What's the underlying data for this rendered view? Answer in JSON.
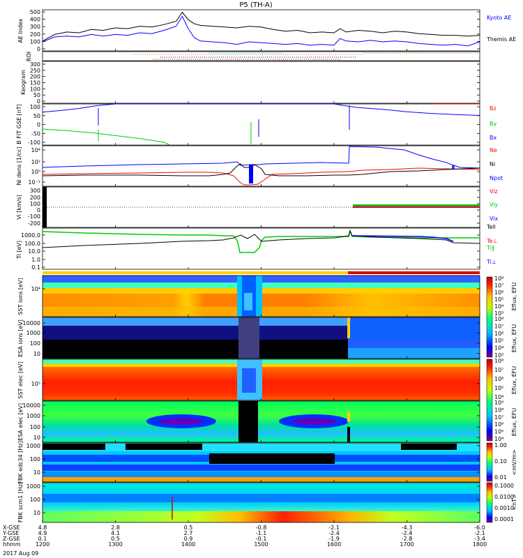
{
  "chart_data": {
    "type": "line",
    "title": "P5 (TH-A)",
    "date_label": "2017 Aug 09",
    "x_axis": {
      "rows": [
        {
          "label": "X-GSE",
          "values": [
            "4.8",
            "2.8",
            "0.5",
            "-0.8",
            "-2.1",
            "-4.3",
            "-6.0"
          ]
        },
        {
          "label": "Y-GSE",
          "values": [
            "4.9",
            "4.1",
            "2.7",
            "-1.1",
            "-2.4",
            "-2.4",
            "-2.1"
          ]
        },
        {
          "label": "Z-GSE",
          "values": [
            "0.1",
            "0.5",
            "0.9",
            "-0.1",
            "-1.9",
            "-2.8",
            "-3.4"
          ]
        },
        {
          "label": "hhmm",
          "values": [
            "1200",
            "1300",
            "1400",
            "1500",
            "1600",
            "1700",
            "1800"
          ]
        }
      ]
    },
    "panels": [
      {
        "id": "ae",
        "ylabel": "AE Index",
        "yticks": [
          "500",
          "400",
          "300",
          "200",
          "100",
          "0"
        ],
        "ylim": [
          0,
          500
        ],
        "legend": [
          {
            "name": "Kyoto AE",
            "color": "#0000ff"
          },
          {
            "name": "Themis AE",
            "color": "#000000"
          }
        ],
        "series": [
          {
            "name": "Themis AE",
            "color": "#000000",
            "x": [
              1200,
              1210,
              1220,
              1230,
              1240,
              1250,
              1300,
              1310,
              1320,
              1330,
              1340,
              1350,
              1355,
              1400,
              1405,
              1410,
              1420,
              1430,
              1440,
              1450,
              1500,
              1510,
              1520,
              1530,
              1540,
              1550,
              1600,
              1605,
              1610,
              1620,
              1630,
              1640,
              1650,
              1700,
              1710,
              1720,
              1730,
              1740,
              1750,
              1800
            ],
            "y": [
              120,
              200,
              230,
              220,
              260,
              250,
              280,
              270,
              300,
              290,
              320,
              360,
              470,
              380,
              330,
              310,
              300,
              290,
              280,
              300,
              290,
              260,
              240,
              250,
              220,
              230,
              220,
              270,
              230,
              250,
              240,
              220,
              240,
              230,
              210,
              200,
              190,
              190,
              180,
              190
            ]
          },
          {
            "name": "Kyoto AE",
            "color": "#0000ff",
            "x": [
              1200,
              1210,
              1220,
              1230,
              1240,
              1250,
              1300,
              1310,
              1320,
              1330,
              1340,
              1350,
              1355,
              1400,
              1405,
              1410,
              1420,
              1430,
              1440,
              1450,
              1500,
              1510,
              1520,
              1530,
              1540,
              1550,
              1600,
              1605,
              1610,
              1620,
              1630,
              1640,
              1650,
              1700,
              1710,
              1720,
              1730,
              1740,
              1750,
              1800
            ],
            "y": [
              110,
              170,
              180,
              170,
              200,
              180,
              200,
              190,
              220,
              210,
              250,
              300,
              420,
              270,
              160,
              120,
              110,
              100,
              80,
              110,
              100,
              90,
              80,
              90,
              70,
              80,
              70,
              150,
              120,
              110,
              130,
              110,
              120,
              110,
              90,
              80,
              70,
              80,
              60,
              110
            ]
          }
        ]
      },
      {
        "id": "roi",
        "ylabel": "ROI"
      },
      {
        "id": "keogram",
        "ylabel": "Keogram",
        "yticks": [
          "300",
          "250",
          "200",
          "150",
          "100",
          "50",
          "0"
        ],
        "ylim": [
          0,
          300
        ]
      },
      {
        "id": "bfield",
        "ylabel": "B FIT GSE [nT]",
        "yticks": [
          "100",
          "50",
          "0",
          "-50",
          "-100"
        ],
        "ylim": [
          -100,
          100
        ],
        "legend": [
          {
            "name": "Bz",
            "color": "#ff0000"
          },
          {
            "name": "By",
            "color": "#00cc00"
          },
          {
            "name": "Bx",
            "color": "#0000ff"
          }
        ],
        "series": [
          {
            "name": "Bx",
            "color": "#0000ff",
            "x": [
              1200,
              1215,
              1230,
              1245,
              1300,
              1315,
              1600,
              1610,
              1620,
              1640,
              1700,
              1720,
              1740,
              1800
            ],
            "y": [
              60,
              68,
              78,
              92,
              100,
              100,
              100,
              90,
              82,
              74,
              62,
              54,
              48,
              44
            ]
          },
          {
            "name": "By",
            "color": "#00cc00",
            "x": [
              1200,
              1220,
              1240,
              1300,
              1320,
              1340,
              1345
            ],
            "y": [
              -22,
              -30,
              -40,
              -54,
              -68,
              -86,
              -100
            ]
          },
          {
            "name": "Bz",
            "color": "#ff0000",
            "x": [
              1720,
              1740,
              1800
            ],
            "y": [
              100,
              100,
              100
            ]
          }
        ]
      },
      {
        "id": "density",
        "ylabel": "Ni dens [1/cc]",
        "yticks": [
          "10⁴",
          "10²",
          "10⁰",
          "10⁻²"
        ],
        "legend": [
          {
            "name": "Ne",
            "color": "#ff0000"
          },
          {
            "name": "Ni",
            "color": "#000000"
          },
          {
            "name": "Npot",
            "color": "#0000ff"
          }
        ]
      },
      {
        "id": "velocity",
        "ylabel": "Vi [km/s]",
        "yticks": [
          "300",
          "200",
          "100",
          "0",
          "-100",
          "-200"
        ],
        "ylim": [
          -250,
          350
        ],
        "legend": [
          {
            "name": "Viz",
            "color": "#ff0000"
          },
          {
            "name": "Viy",
            "color": "#00cc00"
          },
          {
            "name": "Vix",
            "color": "#0000ff"
          }
        ]
      },
      {
        "id": "temperature",
        "ylabel": "Ti [eV]",
        "yticks": [
          "1000.0",
          "100.0",
          "10.0",
          "1.0",
          "0.1"
        ],
        "legend": [
          {
            "name": "Tell",
            "color": "#000000"
          },
          {
            "name": "Te⊥",
            "color": "#ff0000"
          },
          {
            "name": "Ti‖",
            "color": "#00cc00"
          },
          {
            "name": "Ti⊥",
            "color": "#0000ff"
          }
        ]
      },
      {
        "id": "sst_i",
        "ylabel": "SST ions [eV]",
        "yticks": [
          "10⁴"
        ],
        "cbar_label": "Eflux, EFU",
        "cbar_ticks": [
          "10⁸",
          "10⁷",
          "10⁶",
          "10⁵",
          "10⁴",
          "10³"
        ]
      },
      {
        "id": "esa_i",
        "ylabel": "ESA ions [eV]",
        "yticks": [
          "10000",
          "1000",
          "100",
          "10"
        ],
        "cbar_label": "Eflux, EFU",
        "cbar_ticks": [
          "10⁸",
          "10⁷",
          "10⁶",
          "10⁵",
          "10⁴",
          "10³"
        ]
      },
      {
        "id": "sst_e",
        "ylabel": "SST elec [eV]",
        "yticks": [
          "10⁵"
        ],
        "cbar_label": "Eflux, EFU",
        "cbar_ticks": [
          "10⁸",
          "10⁷",
          "10⁶",
          "10⁵",
          "10⁴"
        ]
      },
      {
        "id": "esa_e",
        "ylabel": "ESA elec [eV]",
        "yticks": [
          "10000",
          "1000",
          "100",
          "10"
        ],
        "cbar_label": "Eflux, EFU",
        "cbar_ticks": [
          "10⁹",
          "10⁸",
          "10⁷",
          "10⁶",
          "10⁵",
          "10⁴"
        ]
      },
      {
        "id": "fbk_e",
        "ylabel": "FBK edc34 [Hz]",
        "yticks": [
          "1000",
          "100",
          "10"
        ],
        "cbar_label": "<mV/m>",
        "cbar_ticks": [
          "1.00",
          "0.10",
          "0.01"
        ]
      },
      {
        "id": "fbk_b",
        "ylabel": "FBK scm1 [Hz]",
        "yticks": [
          "1000",
          "100",
          "10"
        ],
        "cbar_label": "<nT>",
        "cbar_ticks": [
          "0.1000",
          "0.0100",
          "0.0010",
          "0.0001"
        ]
      }
    ]
  }
}
